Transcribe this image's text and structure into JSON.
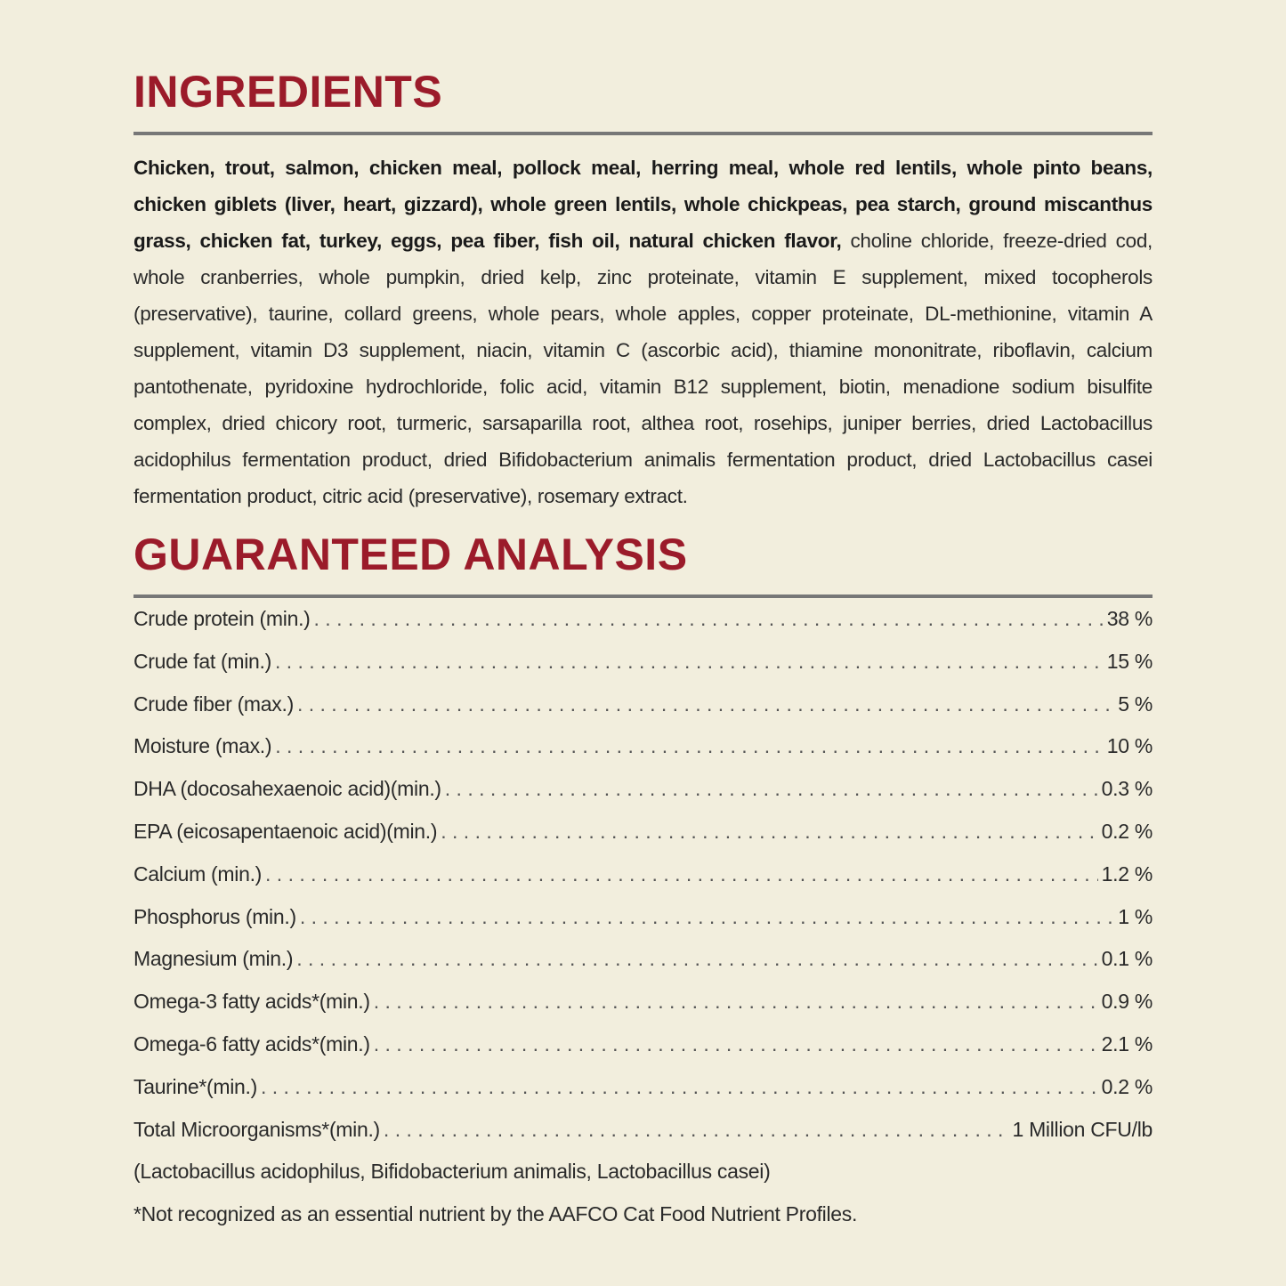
{
  "ingredients": {
    "title": "INGREDIENTS",
    "bold_text": "Chicken, trout, salmon, chicken meal, pollock meal, herring meal, whole red lentils, whole pinto beans, chicken giblets (liver, heart, gizzard), whole green lentils, whole chickpeas, pea starch, ground miscanthus grass, chicken fat, turkey, eggs, pea fiber, fish oil, natural chicken flavor,",
    "regular_text": "choline chloride, freeze-dried cod, whole cranberries, whole pumpkin, dried kelp, zinc proteinate, vitamin E supplement, mixed tocopherols (preservative), taurine, collard greens, whole pears, whole apples, copper proteinate, DL-methionine, vitamin A supplement, vitamin D3 supplement, niacin, vitamin C (ascorbic acid), thiamine mononitrate, riboflavin, calcium pantothenate, pyridoxine hydrochloride, folic acid, vitamin B12 supplement, biotin, menadione sodium bisulfite complex, dried chicory root, turmeric, sarsaparilla root, althea root, rosehips, juniper berries, dried Lactobacillus acidophilus fermentation product, dried Bifidobacterium animalis fermentation product, dried Lactobacillus casei fermentation product, citric acid (preservative), rosemary extract."
  },
  "analysis": {
    "title": "GUARANTEED ANALYSIS",
    "rows": [
      {
        "label": "Crude protein (min.)",
        "value": "38 %"
      },
      {
        "label": "Crude fat (min.)",
        "value": "15 %"
      },
      {
        "label": "Crude fiber (max.)",
        "value": "5 %"
      },
      {
        "label": "Moisture (max.)",
        "value": "10 %"
      },
      {
        "label": "DHA (docosahexaenoic acid)(min.)",
        "value": "0.3 %"
      },
      {
        "label": "EPA (eicosapentaenoic acid)(min.)",
        "value": "0.2 %"
      },
      {
        "label": "Calcium (min.)",
        "value": "1.2 %"
      },
      {
        "label": "Phosphorus (min.)",
        "value": "1 %"
      },
      {
        "label": "Magnesium (min.)",
        "value": "0.1 %"
      },
      {
        "label": "Omega-3 fatty acids*(min.)",
        "value": "0.9 %"
      },
      {
        "label": "Omega-6 fatty acids*(min.)",
        "value": "2.1 %"
      },
      {
        "label": "Taurine*(min.)",
        "value": "0.2 %"
      },
      {
        "label": "Total Microorganisms*(min.)",
        "value": "1 Million CFU/lb"
      }
    ],
    "strains": "(Lactobacillus acidophilus, Bifidobacterium animalis, Lactobacillus casei)",
    "footnote": "*Not recognized as an essential nutrient by the AAFCO Cat Food Nutrient Profiles."
  },
  "colors": {
    "heading": "#9b1b2a",
    "background": "#f2eedd",
    "rule": "#777777"
  }
}
